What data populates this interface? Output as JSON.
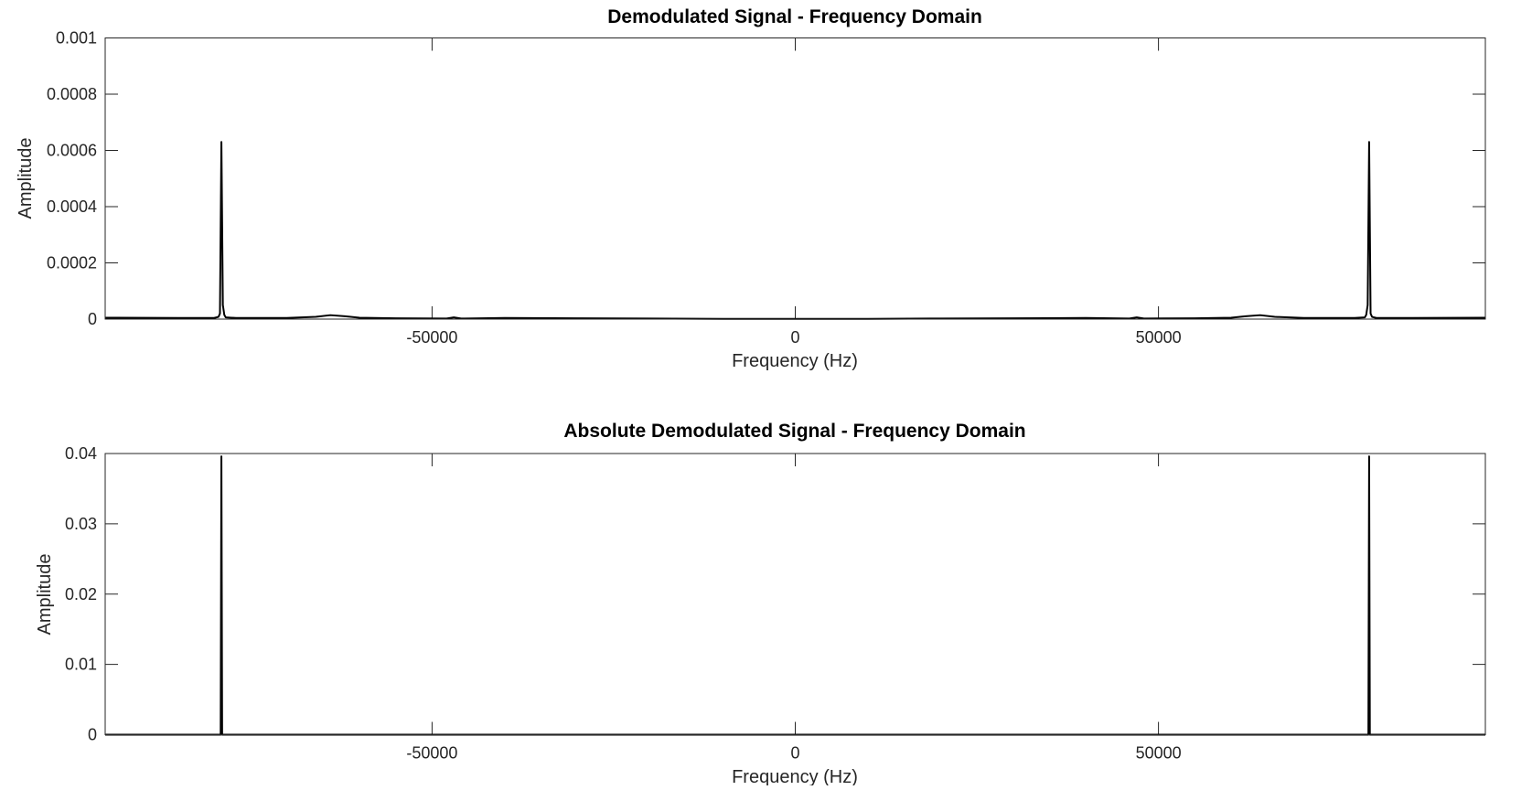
{
  "chart_data": [
    {
      "type": "line",
      "title": "Demodulated Signal - Frequency Domain",
      "xlabel": "Frequency (Hz)",
      "ylabel": "Amplitude",
      "xlim": [
        -95000,
        95000
      ],
      "ylim": [
        0,
        0.001
      ],
      "x_ticks": [
        -50000,
        0,
        50000
      ],
      "x_tick_labels": [
        "-50000",
        "0",
        "50000"
      ],
      "y_ticks": [
        0,
        0.0002,
        0.0004,
        0.0006,
        0.0008,
        0.001
      ],
      "y_tick_labels": [
        "0",
        "0.0002",
        "0.0004",
        "0.0006",
        "0.0008",
        "0.001"
      ],
      "grid": false,
      "color": "#000000",
      "series": [
        {
          "x": [
            -95000,
            -85000,
            -80000,
            -79400,
            -79200,
            -79000,
            -78800,
            -78600,
            -78400,
            -77000,
            -70000,
            -66000,
            -64000,
            -62000,
            -60000,
            -55000,
            -48000,
            -47000,
            -46000,
            -40000,
            -30000,
            -20000,
            -10000,
            0,
            10000,
            20000,
            30000,
            40000,
            46000,
            47000,
            48000,
            55000,
            60000,
            62000,
            64000,
            66000,
            70000,
            77000,
            78400,
            78600,
            78800,
            79000,
            79200,
            79400,
            80000,
            85000,
            95000
          ],
          "y": [
            5e-06,
            4e-06,
            4e-06,
            8e-06,
            2e-05,
            0.00063,
            5e-05,
            1.5e-05,
            6e-06,
            4e-06,
            4e-06,
            8e-06,
            1.4e-05,
            1e-05,
            5e-06,
            3e-06,
            2e-06,
            6e-06,
            2e-06,
            4e-06,
            3e-06,
            2e-06,
            1e-06,
            1e-06,
            1e-06,
            2e-06,
            3e-06,
            4e-06,
            2e-06,
            6e-06,
            2e-06,
            3e-06,
            5e-06,
            1e-05,
            1.4e-05,
            8e-06,
            4e-06,
            4e-06,
            6e-06,
            1.5e-05,
            5e-05,
            0.00063,
            2e-05,
            8e-06,
            4e-06,
            4e-06,
            5e-06
          ]
        }
      ]
    },
    {
      "type": "line",
      "title": "Absolute Demodulated Signal - Frequency Domain",
      "xlabel": "Frequency (Hz)",
      "ylabel": "Amplitude",
      "xlim": [
        -95000,
        95000
      ],
      "ylim": [
        0,
        0.04
      ],
      "x_ticks": [
        -50000,
        0,
        50000
      ],
      "x_tick_labels": [
        "-50000",
        "0",
        "50000"
      ],
      "y_ticks": [
        0,
        0.01,
        0.02,
        0.03,
        0.04
      ],
      "y_tick_labels": [
        "0",
        "0.01",
        "0.02",
        "0.03",
        "0.04"
      ],
      "grid": false,
      "color": "#000000",
      "series": [
        {
          "x": [
            -95000,
            -79100,
            -79000,
            -78900,
            78900,
            79000,
            79100,
            95000
          ],
          "y": [
            0,
            0,
            0.0396,
            0,
            0,
            0.0396,
            0,
            0
          ]
        }
      ]
    }
  ]
}
